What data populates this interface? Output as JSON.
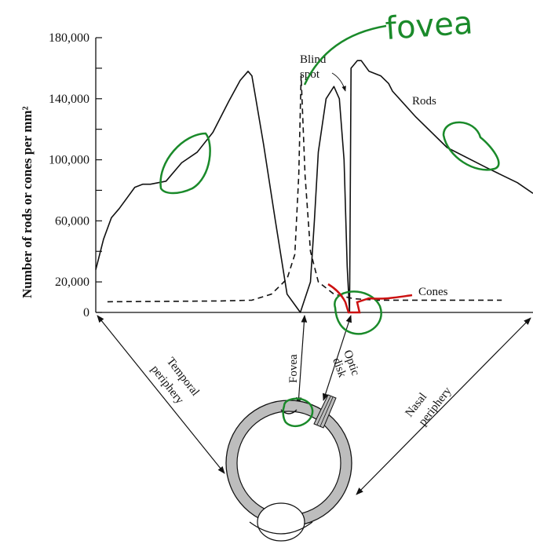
{
  "chart_data": {
    "type": "line",
    "ylabel": "Number of rods or cones per mm²",
    "yticks": [
      0,
      20000,
      60000,
      100000,
      140000,
      180000
    ],
    "ytick_labels": [
      "0",
      "20,000",
      "60,000",
      "100,000",
      "140,000",
      "180,000"
    ],
    "ylim": [
      0,
      180000
    ],
    "series": [
      {
        "name": "Rods",
        "style": "solid",
        "color": "#111111",
        "x": [
          0,
          10,
          20,
          30,
          40,
          50,
          60,
          70,
          90,
          110,
          130,
          150,
          170,
          185,
          195,
          200,
          205,
          215,
          230,
          245,
          262,
          275,
          280,
          285,
          295,
          305,
          312,
          318,
          322,
          325,
          327,
          335,
          340,
          350,
          365,
          375,
          380,
          410,
          450,
          500,
          540,
          560
        ],
        "values": [
          28000,
          48000,
          62000,
          68000,
          75000,
          82000,
          84000,
          84000,
          86000,
          98000,
          105000,
          118000,
          138000,
          152000,
          158000,
          155000,
          140000,
          110000,
          60000,
          12000,
          0,
          20000,
          60000,
          105000,
          140000,
          148000,
          140000,
          100000,
          30000,
          0,
          160000,
          165000,
          165000,
          158000,
          155000,
          150000,
          145000,
          128000,
          108000,
          95000,
          85000,
          78000
        ]
      },
      {
        "name": "Cones",
        "style": "dashed",
        "color": "#111111",
        "x": [
          15,
          160,
          200,
          225,
          245,
          255,
          260,
          263,
          268,
          275,
          285,
          305,
          330,
          360,
          520
        ],
        "values": [
          7000,
          7500,
          8000,
          12000,
          22000,
          38000,
          90000,
          155000,
          90000,
          40000,
          20000,
          12000,
          9000,
          8000,
          8000
        ]
      }
    ],
    "annotations": {
      "blind_spot": "Blind spot",
      "blind_line1": "Blind",
      "blind_line2": "spot",
      "rods": "Rods",
      "cones": "Cones",
      "fovea": "Fovea",
      "optic_line1": "Optic",
      "optic_line2": "disk",
      "temporal_line1": "Temporal",
      "temporal_line2": "periphery",
      "nasal_line1": "Nasal",
      "nasal_line2": "periphery",
      "handwritten_fovea": "fovea"
    },
    "colors": {
      "axes": "#111111",
      "handwriting_green": "#1a8a2a",
      "handwriting_red": "#cc1111",
      "eye_fill": "#bdbdbd"
    }
  }
}
